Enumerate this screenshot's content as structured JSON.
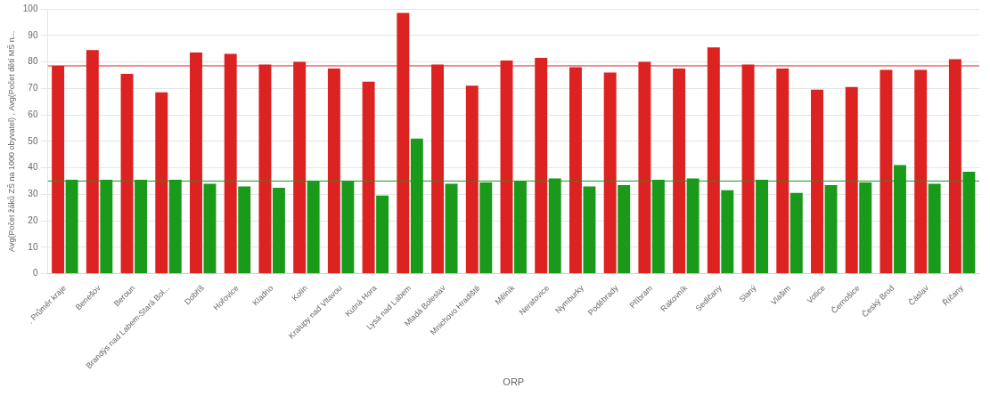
{
  "chart_data": {
    "type": "bar",
    "x_label": "ORP",
    "y_label": "Avg(Počet žáků ZŠ na 1000 obyvatel) , Avg(Počet dětí MŠ n...",
    "categories": [
      ". Průměr kraje",
      "Benešov",
      "Beroun",
      "Brandýs nad Labem-Stará Bol...",
      "Dobříš",
      "Hořovice",
      "Kladno",
      "Kolín",
      "Kralupy nad Vltavou",
      "Kutná Hora",
      "Lysá nad Labem",
      "Mladá Boleslav",
      "Mnichovo Hradiště",
      "Mělník",
      "Neratovice",
      "Nymburky",
      "Poděbrady",
      "Příbram",
      "Rakovník",
      "Sedlčany",
      "Slaný",
      "Vlašim",
      "Votice",
      "Černošice",
      "Český Brod",
      "Čáslav",
      "Říčany"
    ],
    "series": [
      {
        "color": "#dd2222",
        "reference_line": 78.5,
        "values": [
          78.5,
          84.5,
          75.5,
          68.5,
          83.5,
          83.0,
          79.0,
          80.0,
          77.5,
          72.5,
          98.5,
          79.0,
          71.0,
          80.5,
          81.5,
          78.0,
          76.0,
          80.0,
          77.5,
          85.5,
          79.0,
          77.5,
          69.5,
          70.5,
          77.0,
          77.0,
          81.0
        ]
      },
      {
        "color": "#1a9a1a",
        "reference_line": 35.0,
        "values": [
          35.5,
          35.5,
          35.5,
          35.5,
          34.0,
          33.0,
          32.5,
          35.0,
          35.0,
          29.5,
          51.0,
          34.0,
          34.5,
          35.0,
          36.0,
          33.0,
          33.5,
          35.5,
          36.0,
          31.5,
          35.5,
          30.5,
          33.5,
          34.5,
          41.0,
          34.0,
          38.5
        ]
      }
    ],
    "ylim": [
      0,
      100
    ],
    "yticks": [
      0,
      10,
      20,
      30,
      40,
      50,
      60,
      70,
      80,
      90,
      100
    ],
    "grid": true
  }
}
